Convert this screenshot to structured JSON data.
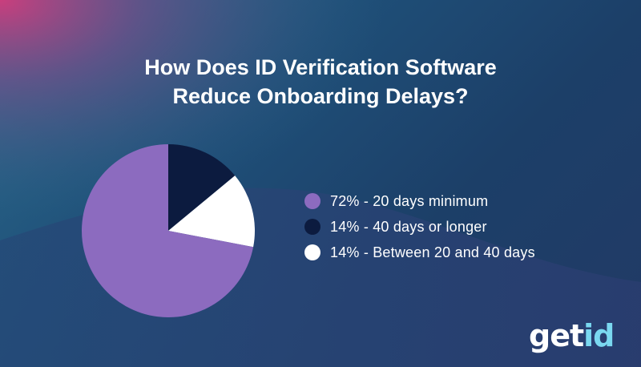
{
  "title_lines": [
    "How Does ID Verification Software",
    "Reduce Onboarding Delays?"
  ],
  "colors": {
    "purple": "#8c6bbf",
    "navy": "#0c1b3f",
    "white": "#ffffff",
    "logo_accent": "#7ad8f0"
  },
  "chart_data": {
    "type": "pie",
    "slices": [
      {
        "label": "72% - 20 days minimum",
        "value": 72,
        "color": "#8c6bbf"
      },
      {
        "label": "14% - 40 days or longer",
        "value": 14,
        "color": "#0c1b3f"
      },
      {
        "label": "14% - Between 20 and 40 days",
        "value": 14,
        "color": "#ffffff"
      }
    ],
    "legend_position": "right"
  },
  "logo": {
    "part1": "get",
    "part2": "id"
  }
}
